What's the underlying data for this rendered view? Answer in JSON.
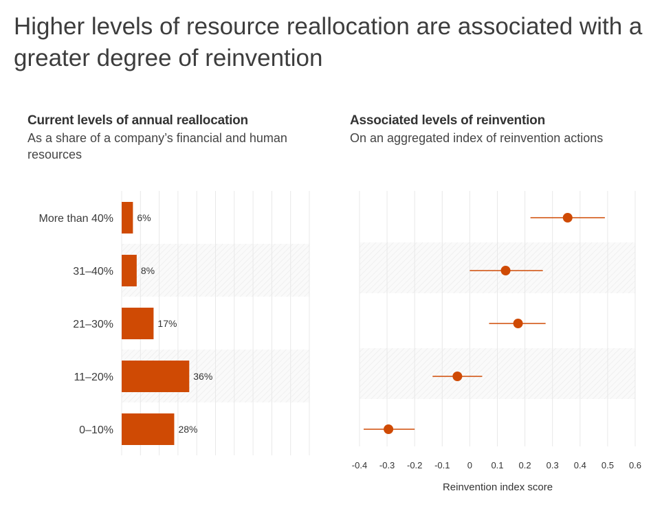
{
  "title": "Higher levels of resource reallocation are associated with a greater degree of reinvention",
  "chart_data": [
    {
      "type": "bar",
      "orientation": "horizontal",
      "title": "Current levels of annual reallocation",
      "subtitle": "As a share of a company’s financial and human resources",
      "categories": [
        "More than 40%",
        "31–40%",
        "21–30%",
        "11–20%",
        "0–10%"
      ],
      "values": [
        6,
        8,
        17,
        36,
        28
      ],
      "value_labels": [
        "6%",
        "8%",
        "17%",
        "36%",
        "28%"
      ],
      "xlim": [
        0,
        100
      ],
      "color": "#cf4a04"
    },
    {
      "type": "scatter",
      "subtype": "dot-with-range",
      "title": "Associated levels of reinvention",
      "subtitle": "On an aggregated index of reinvention actions",
      "categories": [
        "More than 40%",
        "31–40%",
        "21–30%",
        "11–20%",
        "0–10%"
      ],
      "values": [
        0.355,
        0.13,
        0.175,
        -0.045,
        -0.295
      ],
      "ranges": [
        [
          0.22,
          0.49
        ],
        [
          0.0,
          0.265
        ],
        [
          0.07,
          0.275
        ],
        [
          -0.135,
          0.045
        ],
        [
          -0.385,
          -0.2
        ]
      ],
      "xlabel": "Reinvention index score",
      "xlim": [
        -0.4,
        0.6
      ],
      "xticks": [
        -0.4,
        -0.3,
        -0.2,
        -0.1,
        0,
        0.1,
        0.2,
        0.3,
        0.4,
        0.5,
        0.6
      ],
      "xtick_labels": [
        "-0.4",
        "-0.3",
        "-0.2",
        "-0.1",
        "0",
        "0.1",
        "0.2",
        "0.3",
        "0.4",
        "0.5",
        "0.6"
      ],
      "color": "#cf4a04"
    }
  ]
}
